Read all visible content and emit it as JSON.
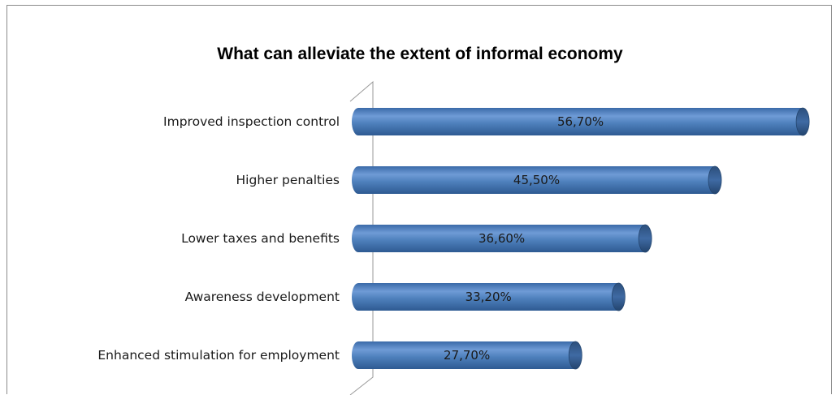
{
  "chart_data": {
    "type": "bar",
    "orientation": "horizontal",
    "title": "What can alleviate the extent of informal economy",
    "xlabel": "",
    "ylabel": "",
    "categories": [
      "Improved inspection control",
      "Higher penalties",
      "Lower taxes and benefits",
      "Awareness development",
      "Enhanced stimulation for employment"
    ],
    "values": [
      56.7,
      45.5,
      36.6,
      33.2,
      27.7
    ],
    "value_labels": [
      "56,70%",
      "45,50%",
      "36,60%",
      "33,20%",
      "27,70%"
    ],
    "xlim": [
      0,
      57
    ],
    "grid": false,
    "legend": "none",
    "bar_color": "#4f81bd",
    "bar_color_dark": "#2c4f7c"
  }
}
